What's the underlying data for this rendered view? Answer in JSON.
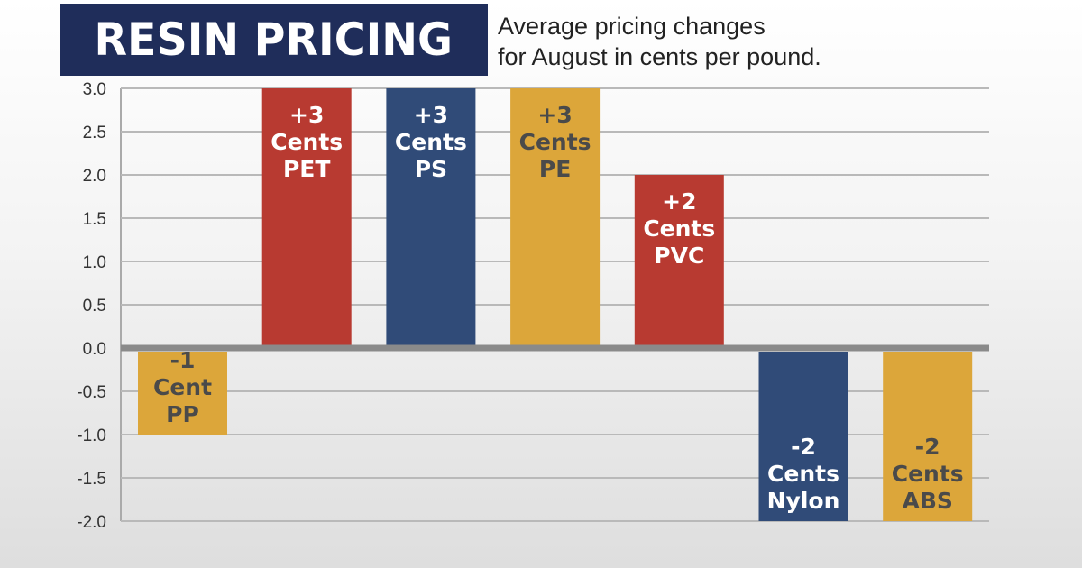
{
  "title": "RESIN PRICING",
  "subtitle_lines": [
    "Average pricing changes",
    "for August in cents per pound."
  ],
  "colors": {
    "red": "#b83a31",
    "navy": "#304b78",
    "gold": "#dca63a",
    "title_bg": "#1f2d5a",
    "dark_text": "#4a4a4a"
  },
  "chart_data": {
    "type": "bar",
    "title": "RESIN PRICING",
    "categories": [
      "PP",
      "PET",
      "PS",
      "PE",
      "PVC",
      "Nylon",
      "ABS"
    ],
    "values": [
      -1,
      3,
      3,
      3,
      2,
      -2,
      -2
    ],
    "bar_colors": [
      "gold",
      "red",
      "navy",
      "gold",
      "red",
      "navy",
      "gold"
    ],
    "bar_labels": [
      [
        "-1",
        "Cent",
        "PP"
      ],
      [
        "+3",
        "Cents",
        "PET"
      ],
      [
        "+3",
        "Cents",
        "PS"
      ],
      [
        "+3",
        "Cents",
        "PE"
      ],
      [
        "+2",
        "Cents",
        "PVC"
      ],
      [
        "-2",
        "Cents",
        "Nylon"
      ],
      [
        "-2",
        "Cents",
        "ABS"
      ]
    ],
    "ylim": [
      -2.0,
      3.0
    ],
    "yticks": [
      "3.0",
      "2.5",
      "2.0",
      "1.5",
      "1.0",
      "0.5",
      "0.0",
      "-0.5",
      "-1.0",
      "-1.5",
      "-2.0"
    ],
    "xlabel": "",
    "ylabel": "",
    "grid": true,
    "legend": "none"
  }
}
